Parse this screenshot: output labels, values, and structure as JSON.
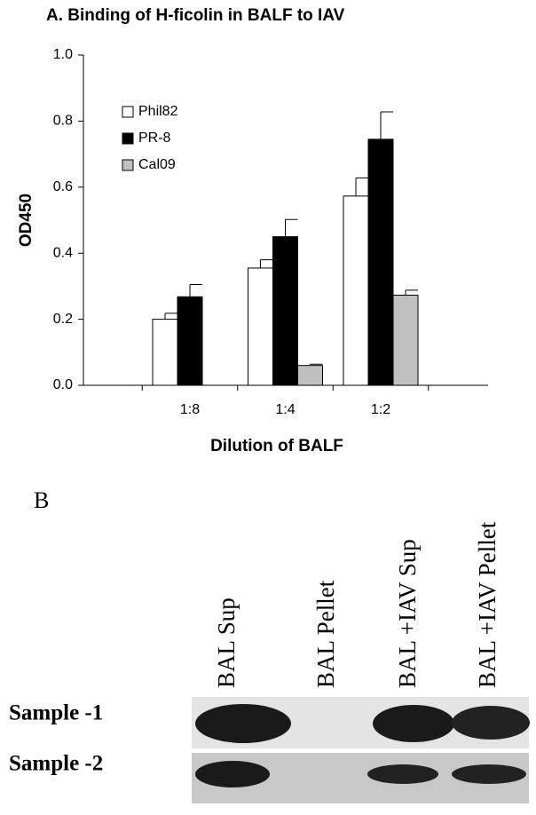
{
  "chart_data": {
    "type": "bar",
    "title": "A. Binding of H-ficolin in BALF to IAV",
    "x_label": "Dilution of BALF",
    "y_label": "OD450",
    "categories": [
      "1:8",
      "1:4",
      "1:2"
    ],
    "series": [
      {
        "name": "Phil82",
        "color": "#ffffff",
        "values": [
          0.2,
          0.355,
          0.573
        ],
        "errors": [
          0.018,
          0.025,
          0.055
        ]
      },
      {
        "name": "PR-8",
        "color": "#000000",
        "values": [
          0.268,
          0.45,
          0.745
        ],
        "errors": [
          0.037,
          0.052,
          0.083
        ]
      },
      {
        "name": "Cal09",
        "color": "#c0c0c0",
        "values": [
          null,
          0.06,
          0.273
        ],
        "errors": [
          null,
          0.004,
          0.015
        ]
      }
    ],
    "ylim": [
      0,
      1
    ],
    "yticks": [
      {
        "value": 0,
        "label": "0.0"
      },
      0.2,
      0.4,
      0.6,
      0.8,
      {
        "value": 1,
        "label": "1.0"
      }
    ],
    "legend": "upper left",
    "grid": false
  },
  "blot": {
    "label": "B",
    "columns": [
      "BAL Sup",
      "BAL Pellet",
      "BAL +IAV Sup",
      "BAL +IAV Pellet"
    ],
    "rows": [
      "Sample -1",
      "Sample -2"
    ]
  }
}
